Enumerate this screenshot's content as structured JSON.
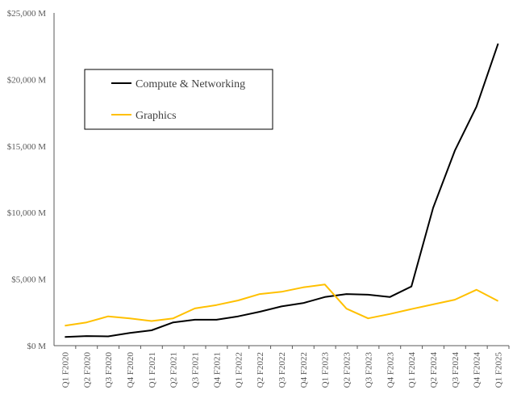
{
  "chart_data": {
    "type": "line",
    "title": "",
    "xlabel": "",
    "ylabel": "",
    "ylim": [
      0,
      25000
    ],
    "yticks": [
      0,
      5000,
      10000,
      15000,
      20000,
      25000
    ],
    "ytick_labels": [
      "$0 M",
      "$5,000 M",
      "$10,000 M",
      "$15,000 M",
      "$20,000 M",
      "$25,000 M"
    ],
    "grid": false,
    "legend_position": "upper-left",
    "categories": [
      "Q1 F2020",
      "Q2 F2020",
      "Q3 F2020",
      "Q4 F2020",
      "Q1 F2021",
      "Q2 F2021",
      "Q3 F2021",
      "Q4 F2021",
      "Q1 F2022",
      "Q2 F2022",
      "Q3 F2022",
      "Q4 F2022",
      "Q1 F2023",
      "Q2 F2023",
      "Q3 F2023",
      "Q4 F2023",
      "Q1 F2024",
      "Q2 F2024",
      "Q3 F2024",
      "Q4 F2024",
      "Q1 F2025"
    ],
    "series": [
      {
        "name": "Compute & Networking",
        "color": "#000000",
        "values": [
          650,
          720,
          700,
          950,
          1150,
          1750,
          1950,
          1950,
          2200,
          2550,
          2950,
          3200,
          3650,
          3880,
          3830,
          3650,
          4450,
          10350,
          14650,
          17950,
          22700
        ]
      },
      {
        "name": "Graphics",
        "color": "#FFC000",
        "values": [
          1500,
          1750,
          2200,
          2050,
          1850,
          2050,
          2800,
          3050,
          3400,
          3880,
          4050,
          4380,
          4600,
          2780,
          2050,
          2380,
          2750,
          3100,
          3450,
          4200,
          3350
        ]
      }
    ]
  }
}
